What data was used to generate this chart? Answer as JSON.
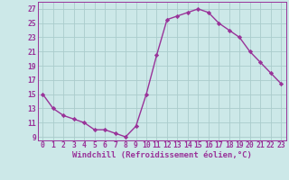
{
  "x": [
    0,
    1,
    2,
    3,
    4,
    5,
    6,
    7,
    8,
    9,
    10,
    11,
    12,
    13,
    14,
    15,
    16,
    17,
    18,
    19,
    20,
    21,
    22,
    23
  ],
  "y": [
    15,
    13,
    12,
    11.5,
    11,
    10,
    10,
    9.5,
    9,
    10.5,
    15,
    20.5,
    25.5,
    26,
    26.5,
    27,
    26.5,
    25,
    24,
    23,
    21,
    19.5,
    18,
    16.5
  ],
  "line_color": "#993399",
  "marker": "D",
  "marker_size": 2.2,
  "bg_color": "#cce8e8",
  "grid_color": "#aacccc",
  "xlabel": "Windchill (Refroidissement éolien,°C)",
  "xlabel_fontsize": 6.5,
  "ytick_labels": [
    "9",
    "11",
    "13",
    "15",
    "17",
    "19",
    "21",
    "23",
    "25",
    "27"
  ],
  "ytick_values": [
    9,
    11,
    13,
    15,
    17,
    19,
    21,
    23,
    25,
    27
  ],
  "xtick_labels": [
    "0",
    "1",
    "2",
    "3",
    "4",
    "5",
    "6",
    "7",
    "8",
    "9",
    "10",
    "11",
    "12",
    "13",
    "14",
    "15",
    "16",
    "17",
    "18",
    "19",
    "20",
    "21",
    "22",
    "23"
  ],
  "xlim": [
    -0.5,
    23.5
  ],
  "ylim": [
    8.5,
    28
  ],
  "tick_fontsize": 5.8,
  "line_width": 1.0
}
